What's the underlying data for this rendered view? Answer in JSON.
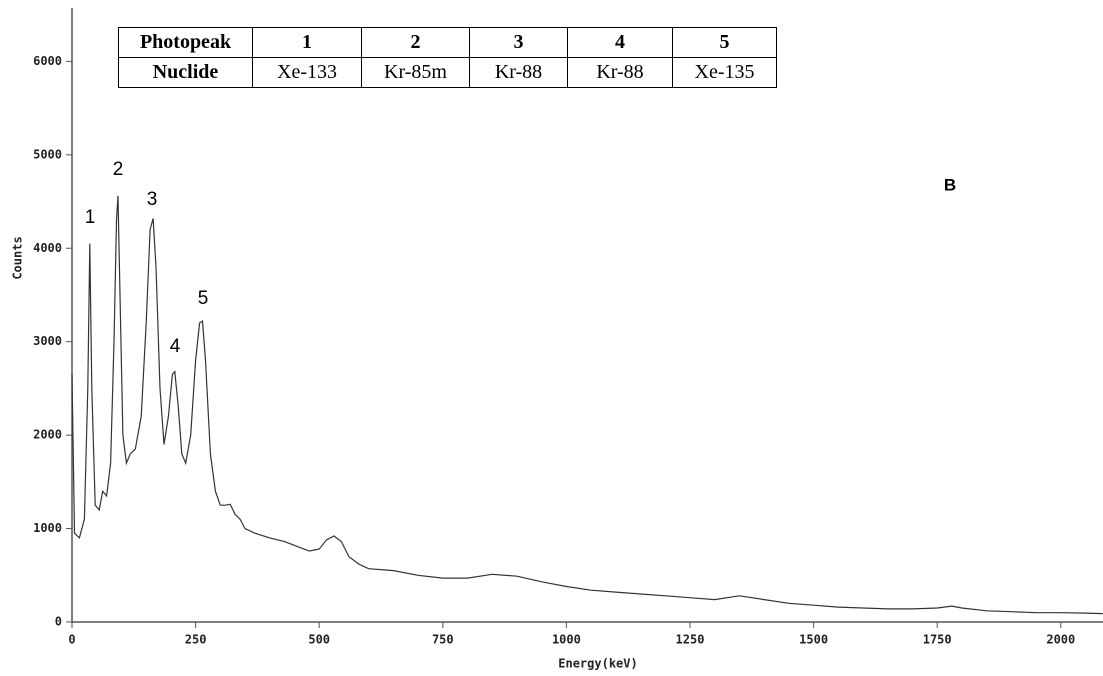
{
  "chart_data": {
    "type": "line",
    "xlabel": "Energy(keV)",
    "ylabel": "Counts",
    "x": [
      0,
      5,
      15,
      25,
      32,
      36,
      40,
      47,
      55,
      62,
      70,
      78,
      85,
      90,
      93,
      97,
      103,
      110,
      118,
      128,
      140,
      150,
      158,
      164,
      170,
      178,
      186,
      195,
      203,
      208,
      215,
      222,
      230,
      240,
      250,
      258,
      264,
      270,
      280,
      290,
      300,
      310,
      320,
      330,
      340,
      350,
      370,
      400,
      430,
      460,
      480,
      500,
      515,
      530,
      545,
      560,
      580,
      600,
      650,
      700,
      750,
      800,
      850,
      900,
      950,
      1000,
      1050,
      1100,
      1150,
      1200,
      1250,
      1300,
      1350,
      1400,
      1450,
      1500,
      1550,
      1600,
      1650,
      1700,
      1750,
      1780,
      1800,
      1850,
      1900,
      1950,
      2000,
      2050,
      2085
    ],
    "values": [
      2650,
      950,
      900,
      1100,
      2500,
      4050,
      2500,
      1250,
      1200,
      1400,
      1350,
      1700,
      3000,
      4300,
      4560,
      3500,
      2000,
      1700,
      1800,
      1850,
      2200,
      3200,
      4200,
      4320,
      3800,
      2500,
      1900,
      2200,
      2650,
      2680,
      2300,
      1800,
      1700,
      2000,
      2800,
      3200,
      3220,
      2800,
      1800,
      1400,
      1250,
      1250,
      1260,
      1150,
      1100,
      1000,
      950,
      900,
      860,
      800,
      760,
      780,
      880,
      920,
      860,
      700,
      620,
      570,
      550,
      500,
      470,
      470,
      510,
      490,
      430,
      380,
      340,
      320,
      300,
      280,
      260,
      240,
      280,
      240,
      200,
      180,
      160,
      150,
      140,
      140,
      150,
      170,
      150,
      120,
      110,
      100,
      100,
      95,
      90
    ],
    "color": "#333333",
    "xlim": [
      0,
      2085
    ],
    "ylim": [
      0,
      6550
    ],
    "xticks": [
      0,
      250,
      500,
      750,
      1000,
      1250,
      1500,
      1750,
      2000
    ],
    "yticks": [
      0,
      1000,
      2000,
      3000,
      4000,
      5000,
      6000
    ],
    "annotations": [
      "1",
      "2",
      "3",
      "4",
      "5",
      "B"
    ]
  },
  "table": {
    "rows": [
      [
        "Photopeak",
        "1",
        "2",
        "3",
        "4",
        "5"
      ],
      [
        "Nuclide",
        "Xe-133",
        "Kr-85m",
        "Kr-88",
        "Kr-88",
        "Xe-135"
      ]
    ]
  }
}
